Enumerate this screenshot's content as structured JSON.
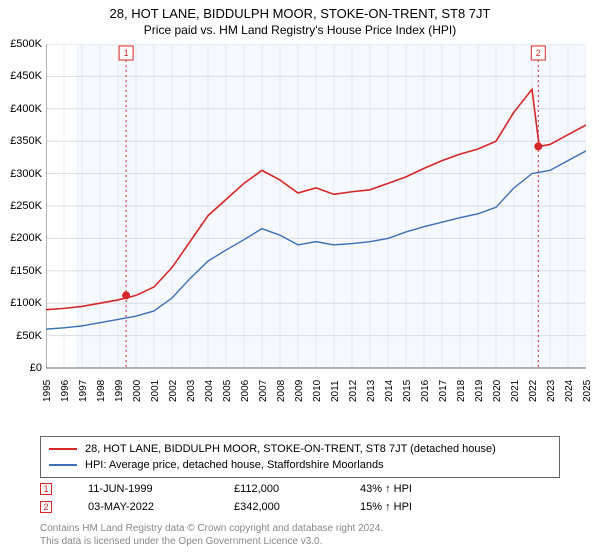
{
  "title": "28, HOT LANE, BIDDULPH MOOR, STOKE-ON-TRENT, ST8 7JT",
  "subtitle": "Price paid vs. HM Land Registry's House Price Index (HPI)",
  "chart": {
    "type": "line",
    "background_color": "#ffffff",
    "plot_background_color": "#f5f8fc",
    "grid_color": "#d9dde3",
    "y": {
      "min": 0,
      "max": 500000,
      "step": 50000,
      "labels": [
        "£0",
        "£50K",
        "£100K",
        "£150K",
        "£200K",
        "£250K",
        "£300K",
        "£350K",
        "£400K",
        "£450K",
        "£500K"
      ],
      "label_fontsize": 11
    },
    "x": {
      "min": 1995,
      "max": 2025,
      "labels": [
        "1995",
        "1996",
        "1997",
        "1998",
        "1999",
        "2000",
        "2001",
        "2002",
        "2003",
        "2004",
        "2005",
        "2006",
        "2007",
        "2008",
        "2009",
        "2010",
        "2011",
        "2012",
        "2013",
        "2014",
        "2015",
        "2016",
        "2017",
        "2018",
        "2019",
        "2020",
        "2021",
        "2022",
        "2023",
        "2024",
        "2025"
      ],
      "label_fontsize": 10
    },
    "series_red": {
      "color": "#d62728",
      "stroke_width": 1.6,
      "points": [
        [
          1995,
          90000
        ],
        [
          1996,
          92000
        ],
        [
          1997,
          95000
        ],
        [
          1998,
          100000
        ],
        [
          1999,
          105000
        ],
        [
          2000,
          112000
        ],
        [
          2001,
          125000
        ],
        [
          2002,
          155000
        ],
        [
          2003,
          195000
        ],
        [
          2004,
          235000
        ],
        [
          2005,
          260000
        ],
        [
          2006,
          285000
        ],
        [
          2007,
          305000
        ],
        [
          2008,
          290000
        ],
        [
          2009,
          270000
        ],
        [
          2010,
          278000
        ],
        [
          2011,
          268000
        ],
        [
          2012,
          272000
        ],
        [
          2013,
          275000
        ],
        [
          2014,
          285000
        ],
        [
          2015,
          295000
        ],
        [
          2016,
          308000
        ],
        [
          2017,
          320000
        ],
        [
          2018,
          330000
        ],
        [
          2019,
          338000
        ],
        [
          2020,
          350000
        ],
        [
          2021,
          395000
        ],
        [
          2022,
          430000
        ],
        [
          2022.4,
          342000
        ],
        [
          2023,
          345000
        ],
        [
          2024,
          360000
        ],
        [
          2025,
          375000
        ]
      ]
    },
    "series_blue": {
      "color": "#3b6fb6",
      "stroke_width": 1.4,
      "points": [
        [
          1995,
          60000
        ],
        [
          1996,
          62000
        ],
        [
          1997,
          65000
        ],
        [
          1998,
          70000
        ],
        [
          1999,
          75000
        ],
        [
          2000,
          80000
        ],
        [
          2001,
          88000
        ],
        [
          2002,
          108000
        ],
        [
          2003,
          138000
        ],
        [
          2004,
          165000
        ],
        [
          2005,
          182000
        ],
        [
          2006,
          198000
        ],
        [
          2007,
          215000
        ],
        [
          2008,
          205000
        ],
        [
          2009,
          190000
        ],
        [
          2010,
          195000
        ],
        [
          2011,
          190000
        ],
        [
          2012,
          192000
        ],
        [
          2013,
          195000
        ],
        [
          2014,
          200000
        ],
        [
          2015,
          210000
        ],
        [
          2016,
          218000
        ],
        [
          2017,
          225000
        ],
        [
          2018,
          232000
        ],
        [
          2019,
          238000
        ],
        [
          2020,
          248000
        ],
        [
          2021,
          278000
        ],
        [
          2022,
          300000
        ],
        [
          2023,
          305000
        ],
        [
          2024,
          320000
        ],
        [
          2025,
          335000
        ]
      ]
    },
    "sale_markers": [
      {
        "n": "1",
        "year": 1999.45,
        "value": 112000,
        "color": "#d62728"
      },
      {
        "n": "2",
        "year": 2022.35,
        "value": 342000,
        "color": "#d62728"
      }
    ],
    "marker_line_color": "#d62728",
    "marker_line_dash": "2,3",
    "marker_box_fontsize": 9
  },
  "legend": {
    "border_color": "#666666",
    "fontsize": 11,
    "items": [
      {
        "color": "#d62728",
        "label": "28, HOT LANE, BIDDULPH MOOR, STOKE-ON-TRENT, ST8 7JT (detached house)"
      },
      {
        "color": "#3b6fb6",
        "label": "HPI: Average price, detached house, Staffordshire Moorlands"
      }
    ]
  },
  "sales": {
    "fontsize": 11,
    "rows": [
      {
        "n": "1",
        "color": "#d62728",
        "date": "11-JUN-1999",
        "price": "£112,000",
        "delta": "43% ↑ HPI"
      },
      {
        "n": "2",
        "color": "#d62728",
        "date": "03-MAY-2022",
        "price": "£342,000",
        "delta": "15% ↑ HPI"
      }
    ]
  },
  "footer": {
    "line1": "Contains HM Land Registry data © Crown copyright and database right 2024.",
    "line2": "This data is licensed under the Open Government Licence v3.0.",
    "color": "#888888",
    "fontsize": 10
  }
}
